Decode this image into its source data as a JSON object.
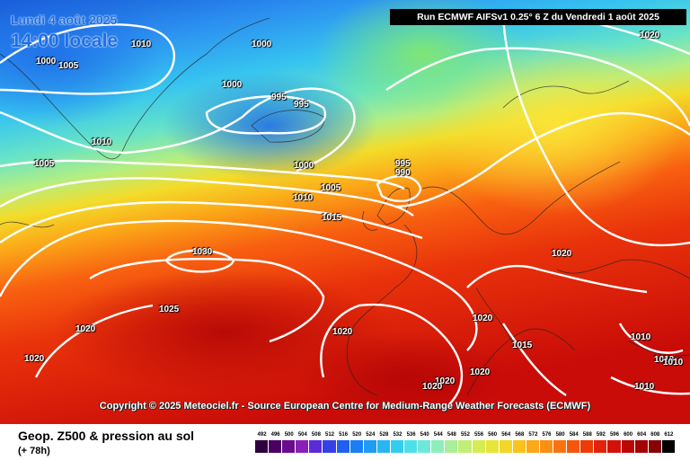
{
  "header": {
    "date": "Lundi 4 août 2025",
    "time": "14:00 locale",
    "run": "Run ECMWF AIFSv1 0.25° 6 Z du Vendredi 1 août 2025"
  },
  "copyright": "Copyright © 2025 Meteociel.fr - Source European Centre for Medium-Range Weather Forecasts (ECMWF)",
  "footer": {
    "title": "Geop. Z500 & pression au sol",
    "step": "(+ 78h)"
  },
  "legend": {
    "values": [
      "492",
      "496",
      "500",
      "504",
      "508",
      "512",
      "516",
      "520",
      "524",
      "528",
      "532",
      "536",
      "540",
      "544",
      "548",
      "552",
      "556",
      "560",
      "564",
      "568",
      "572",
      "576",
      "580",
      "584",
      "588",
      "592",
      "596",
      "600",
      "604",
      "608",
      "612"
    ],
    "colors": [
      "#2e003e",
      "#4a0063",
      "#6a0b8f",
      "#8a1fb8",
      "#5b2bd6",
      "#3540e6",
      "#1f5ff2",
      "#1a7ff5",
      "#1f9cf4",
      "#27b6f2",
      "#35cdef",
      "#4ee0ea",
      "#6ee9d8",
      "#8eeebb",
      "#a9ef98",
      "#c1ee74",
      "#d6ec53",
      "#e8e539",
      "#f4d628",
      "#f9c21c",
      "#fca818",
      "#fd8f14",
      "#fb7310",
      "#f6560c",
      "#ee3b0a",
      "#e32308",
      "#d41108",
      "#bd0706",
      "#a20305",
      "#850304",
      "#000000"
    ]
  },
  "isobar_labels": [
    {
      "text": "1010"
    },
    {
      "text": "1000"
    },
    {
      "text": "1005"
    },
    {
      "text": "1000"
    },
    {
      "text": "1000"
    },
    {
      "text": "995"
    },
    {
      "text": "995"
    },
    {
      "text": "1010"
    },
    {
      "text": "1005"
    },
    {
      "text": "1000"
    },
    {
      "text": "1005"
    },
    {
      "text": "1010"
    },
    {
      "text": "1015"
    },
    {
      "text": "995"
    },
    {
      "text": "990"
    },
    {
      "text": "1020"
    },
    {
      "text": "1030"
    },
    {
      "text": "1025"
    },
    {
      "text": "1020"
    },
    {
      "text": "1020"
    },
    {
      "text": "1020"
    },
    {
      "text": "1020"
    },
    {
      "text": "1020"
    },
    {
      "text": "1015"
    },
    {
      "text": "1020"
    },
    {
      "text": "1020"
    },
    {
      "text": "1010"
    },
    {
      "text": "1010"
    },
    {
      "text": "1010"
    },
    {
      "text": "1010"
    },
    {
      "text": "1020"
    }
  ]
}
